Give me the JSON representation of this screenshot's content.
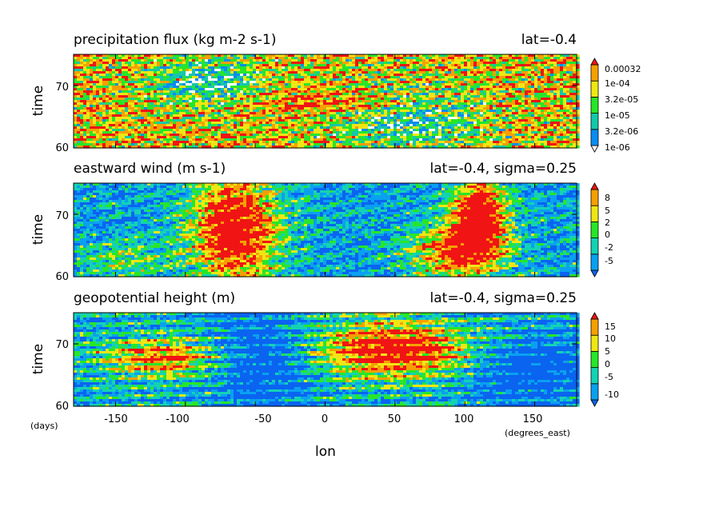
{
  "chart_data": [
    {
      "type": "heatmap",
      "title": "precipitation flux (kg m-2 s-1)",
      "subtitle": "lat=-0.4",
      "ylabel": "time",
      "yticks": [
        "60",
        "70"
      ],
      "ylim": [
        60,
        75
      ],
      "xlim": [
        -180,
        180
      ],
      "colorbar": {
        "labels": [
          "1e-06",
          "3.2e-06",
          "1e-05",
          "3.2e-05",
          "1e-04",
          "0.00032"
        ],
        "colors": [
          "#ffffff",
          "#0a8cf0",
          "#14c8aa",
          "#28e628",
          "#f0e614",
          "#f5a000",
          "#f01414"
        ]
      }
    },
    {
      "type": "heatmap",
      "title": "eastward wind (m s-1)",
      "subtitle": "lat=-0.4, sigma=0.25",
      "ylabel": "time",
      "yticks": [
        "60",
        "70"
      ],
      "ylim": [
        60,
        75
      ],
      "xlim": [
        -180,
        180
      ],
      "colorbar": {
        "labels": [
          "-5",
          "-2",
          "0",
          "2",
          "5",
          "8"
        ],
        "colors": [
          "#0a64f0",
          "#0aa0f0",
          "#14d2b4",
          "#28e628",
          "#f0e614",
          "#f5a000",
          "#f01414"
        ]
      }
    },
    {
      "type": "heatmap",
      "title": "geopotential height (m)",
      "subtitle": "lat=-0.4, sigma=0.25",
      "ylabel": "time",
      "yticks": [
        "60",
        "70"
      ],
      "ylim": [
        60,
        75
      ],
      "xlim": [
        -180,
        180
      ],
      "xlabel": "lon",
      "xticks": [
        "-150",
        "-100",
        "-50",
        "0",
        "50",
        "100",
        "150"
      ],
      "xunit": "(degrees_east)",
      "yunit": "(days)",
      "colorbar": {
        "labels": [
          "-10",
          "-5",
          "0",
          "5",
          "10",
          "15"
        ],
        "colors": [
          "#0a64f0",
          "#0aa0f0",
          "#14d2b4",
          "#28e628",
          "#f0e614",
          "#f5a000",
          "#f01414"
        ]
      }
    }
  ]
}
